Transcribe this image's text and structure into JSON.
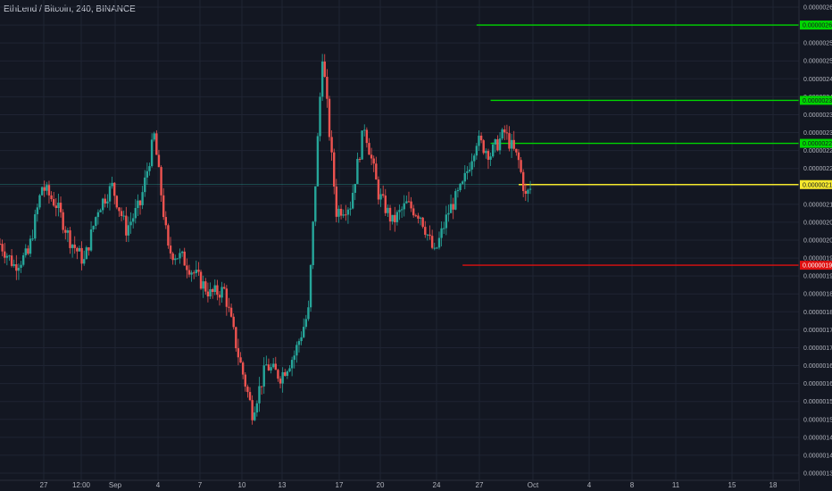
{
  "header": {
    "title": "EthLend / Bitcoin, 240, BINANCE"
  },
  "colors": {
    "background": "#131722",
    "grid": "#1f2433",
    "up": "#26a69a",
    "down": "#ef5350",
    "green_line": "#00d600",
    "yellow_line": "#f5e92d",
    "red_line": "#e01010",
    "axis_text": "#b2b5be"
  },
  "chart_data": {
    "type": "candlestick",
    "title": "EthLend / Bitcoin, 240, BINANCE",
    "symbol": "EthLend / Bitcoin",
    "interval": "240",
    "exchange": "BINANCE",
    "grid": true,
    "ylim": [
      1.35e-06,
      2.65e-06
    ],
    "y_ticks": [
      "0.00000265",
      "0.00000260",
      "0.00000255",
      "0.00000250",
      "0.00000245",
      "0.00000240",
      "0.00000235",
      "0.00000230",
      "0.00000225",
      "0.00000220",
      "0.00000215",
      "0.00000210",
      "0.00000205",
      "0.00000200",
      "0.00000195",
      "0.00000190",
      "0.00000185",
      "0.00000180",
      "0.00000175",
      "0.00000170",
      "0.00000165",
      "0.00000160",
      "0.00000155",
      "0.00000150",
      "0.00000145",
      "0.00000140",
      "0.00000135"
    ],
    "x_ticks": [
      "27",
      "12:00",
      "Sep",
      "4",
      "7",
      "10",
      "13",
      "17",
      "20",
      "24",
      "27",
      "Oct",
      "4",
      "8",
      "11",
      "15",
      "18"
    ],
    "price_tags": [
      {
        "label": "0.00000260",
        "color": "#00d600"
      },
      {
        "label": "0.00000239",
        "color": "#00d600"
      },
      {
        "label": "0.00000227",
        "color": "#00d600"
      },
      {
        "label": "0.00000215",
        "color": "#f5e92d"
      },
      {
        "label": "0.00000193",
        "color": "#e01010"
      }
    ],
    "levels": [
      {
        "price": 2.6e-06,
        "color": "#00d600",
        "from_time": "Sep 28"
      },
      {
        "price": 2.39e-06,
        "color": "#00d600",
        "from_time": "Sep 29"
      },
      {
        "price": 2.27e-06,
        "color": "#00d600",
        "from_time": "Sep 29"
      },
      {
        "price": 2.155e-06,
        "color": "#f5e92d",
        "from_time": "Oct 1"
      },
      {
        "price": 1.93e-06,
        "color": "#e01010",
        "from_time": "Sep 27"
      }
    ],
    "last_price": 2.155e-06,
    "anchors": [
      {
        "time": "Aug 25",
        "price": 1.99e-06
      },
      {
        "time": "Aug 26",
        "price": 1.93e-06
      },
      {
        "time": "Aug 27",
        "price": 1.96e-06
      },
      {
        "time": "Aug 28",
        "price": 2.15e-06
      },
      {
        "time": "Aug 29",
        "price": 2.1e-06
      },
      {
        "time": "Aug 30",
        "price": 2e-06
      },
      {
        "time": "Aug 31",
        "price": 1.94e-06
      },
      {
        "time": "Sep 1",
        "price": 2.09e-06
      },
      {
        "time": "Sep 2",
        "price": 2.15e-06
      },
      {
        "time": "Sep 3",
        "price": 2.03e-06
      },
      {
        "time": "Sep 4",
        "price": 2.1e-06
      },
      {
        "time": "Sep 5",
        "price": 2.29e-06
      },
      {
        "time": "Sep 6",
        "price": 1.97e-06
      },
      {
        "time": "Sep 7",
        "price": 1.95e-06
      },
      {
        "time": "Sep 8",
        "price": 1.9e-06
      },
      {
        "time": "Sep 9",
        "price": 1.85e-06
      },
      {
        "time": "Sep 10",
        "price": 1.86e-06
      },
      {
        "time": "Sep 11",
        "price": 1.68e-06
      },
      {
        "time": "Sep 12",
        "price": 1.52e-06
      },
      {
        "time": "Sep 13",
        "price": 1.65e-06
      },
      {
        "time": "Sep 14",
        "price": 1.62e-06
      },
      {
        "time": "Sep 15",
        "price": 1.68e-06
      },
      {
        "time": "Sep 16",
        "price": 1.8e-06
      },
      {
        "time": "Sep 17",
        "price": 2.52e-06
      },
      {
        "time": "Sep 18",
        "price": 2.08e-06
      },
      {
        "time": "Sep 19",
        "price": 2.1e-06
      },
      {
        "time": "Sep 20",
        "price": 2.32e-06
      },
      {
        "time": "Sep 21",
        "price": 2.13e-06
      },
      {
        "time": "Sep 22",
        "price": 2.05e-06
      },
      {
        "time": "Sep 23",
        "price": 2.1e-06
      },
      {
        "time": "Sep 24",
        "price": 2.07e-06
      },
      {
        "time": "Sep 25",
        "price": 1.96e-06
      },
      {
        "time": "Sep 26",
        "price": 2.08e-06
      },
      {
        "time": "Sep 27",
        "price": 2.15e-06
      },
      {
        "time": "Sep 28",
        "price": 2.28e-06
      },
      {
        "time": "Sep 29",
        "price": 2.24e-06
      },
      {
        "time": "Sep 30",
        "price": 2.3e-06
      },
      {
        "time": "Oct 1",
        "price": 2.22e-06
      },
      {
        "time": "Oct 1 12:00",
        "price": 2.12e-06
      },
      {
        "time": "Oct 2",
        "price": 2.155e-06
      }
    ]
  }
}
